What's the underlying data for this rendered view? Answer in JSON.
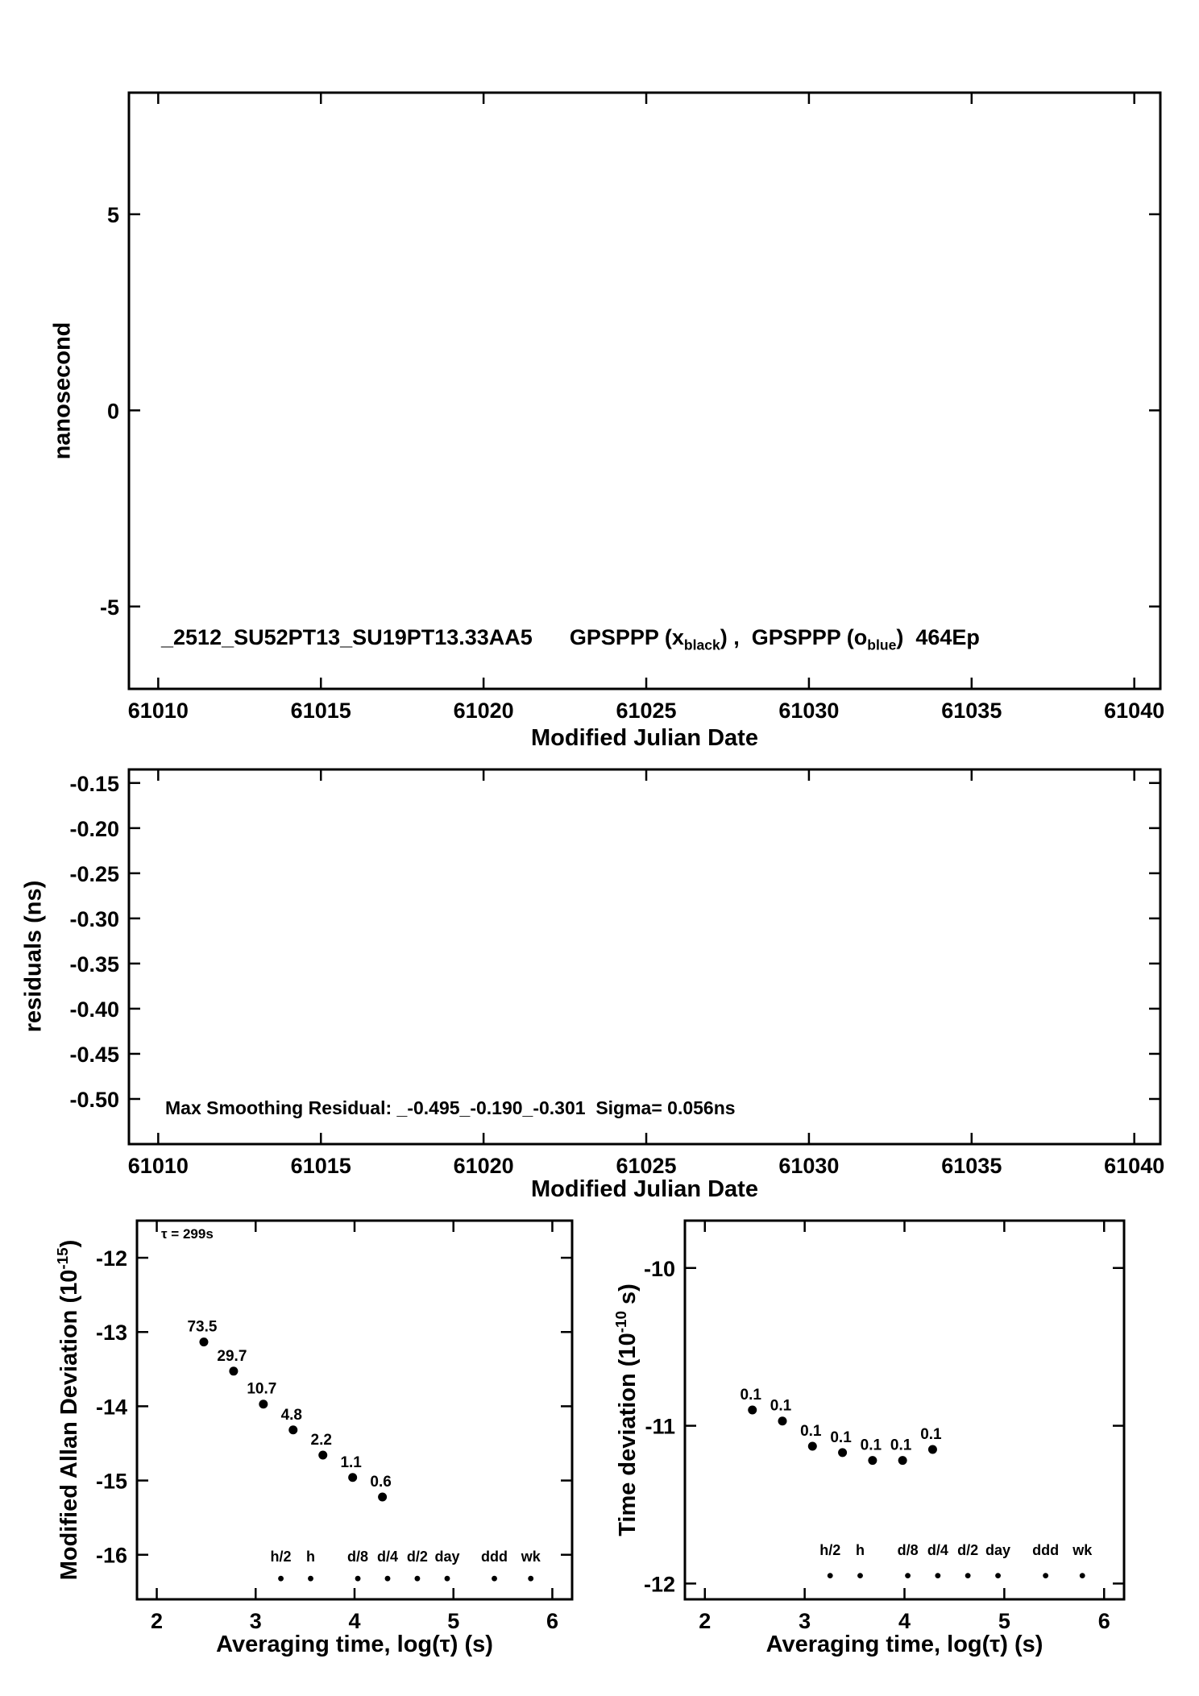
{
  "colors": {
    "background": "#ffffff",
    "axis": "#000000",
    "marker": "#000000",
    "red_label": "#ff0000"
  },
  "chart_data": [
    {
      "type": "scatter",
      "name": "mjd-offset",
      "ylabel": "nanosecond",
      "xlabel": "Modified Julian Date",
      "xlim": [
        61009.1,
        61040.8
      ],
      "ylim": [
        -7.1,
        8.1
      ],
      "xticks": [
        61010,
        61015,
        61020,
        61025,
        61030,
        61035,
        61040
      ],
      "xtick_labels": [
        "61010",
        "61015",
        "61020",
        "61025",
        "61030",
        "61035",
        "61040"
      ],
      "yticks": [
        5,
        0,
        -5
      ],
      "ytick_labels": [
        "5",
        "0",
        "-5"
      ],
      "series": [],
      "annotation": {
        "id": "_2512_SU52PT13_SU19PT13.33AA5",
        "gps_x_prefix": "GPSPPP (x",
        "gps_x_sub": "black",
        "separator": ") ,  GPSPPP (o",
        "gps_o_sub": "blue",
        "suffix": ")  464Ep"
      }
    },
    {
      "type": "scatter",
      "name": "residuals",
      "ylabel": "residuals (ns)",
      "xlabel": "Modified Julian Date",
      "xlim": [
        61009.1,
        61040.8
      ],
      "ylim": [
        -0.55,
        -0.135
      ],
      "xticks": [
        61010,
        61015,
        61020,
        61025,
        61030,
        61035,
        61040
      ],
      "xtick_labels": [
        "61010",
        "61015",
        "61020",
        "61025",
        "61030",
        "61035",
        "61040"
      ],
      "yticks": [
        -0.15,
        -0.2,
        -0.25,
        -0.3,
        -0.35,
        -0.4,
        -0.45,
        -0.5
      ],
      "ytick_labels": [
        "-0.15",
        "-0.20",
        "-0.25",
        "-0.30",
        "-0.35",
        "-0.40",
        "-0.45",
        "-0.50"
      ],
      "series": [],
      "annotation": "Max Smoothing Residual: _-0.495_-0.190_-0.301  Sigma= 0.056ns"
    },
    {
      "type": "scatter",
      "name": "modified-allan-deviation",
      "ylabel_parts": {
        "pre": "Modified Allan Deviation (10",
        "sup": "-15",
        "post": ")"
      },
      "xlabel": "Averaging time, log(τ) (s)",
      "xlim": [
        1.8,
        6.2
      ],
      "ylim": [
        -16.6,
        -11.5
      ],
      "xticks": [
        2,
        3,
        4,
        5,
        6
      ],
      "xtick_labels": [
        "2",
        "3",
        "4",
        "5",
        "6"
      ],
      "yticks": [
        -12,
        -13,
        -14,
        -15,
        -16
      ],
      "ytick_labels": [
        "-12",
        "-13",
        "-14",
        "-15",
        "-16"
      ],
      "tau_annotation": "τ = 299s",
      "points": {
        "x": [
          2.476,
          2.777,
          3.078,
          3.379,
          3.68,
          3.981,
          4.282
        ],
        "y": [
          -13.134,
          -13.527,
          -13.971,
          -14.319,
          -14.658,
          -14.959,
          -15.222
        ],
        "value_labels": [
          "73.5",
          "29.7",
          "10.7",
          "4.8",
          "2.2",
          "1.1",
          "0.6"
        ]
      },
      "marker_row": {
        "x": [
          3.255,
          3.556,
          4.033,
          4.334,
          4.635,
          4.937,
          5.414,
          5.782
        ],
        "y": -16.32,
        "labels": [
          "h/2",
          "h",
          "d/8",
          "d/4",
          "d/2",
          "day",
          "ddd",
          "wk"
        ],
        "label_y": -16.09
      }
    },
    {
      "type": "scatter",
      "name": "time-deviation",
      "ylabel_parts": {
        "pre": "Time deviation (10",
        "sup": "-10",
        "post": " s)"
      },
      "xlabel": "Averaging time, log(τ) (s)",
      "xlim": [
        1.8,
        6.2
      ],
      "ylim": [
        -12.1,
        -9.7
      ],
      "xticks": [
        2,
        3,
        4,
        5,
        6
      ],
      "xtick_labels": [
        "2",
        "3",
        "4",
        "5",
        "6"
      ],
      "yticks": [
        -10,
        -11,
        -12
      ],
      "ytick_labels": [
        "-10",
        "-11",
        "-12"
      ],
      "points": {
        "x": [
          2.476,
          2.777,
          3.078,
          3.379,
          3.68,
          3.981,
          4.282
        ],
        "y": [
          -10.9,
          -10.97,
          -11.13,
          -11.17,
          -11.22,
          -11.22,
          -11.15
        ],
        "value_labels": [
          "0.1",
          "0.1",
          "0.1",
          "0.1",
          "0.1",
          "0.1",
          "0.1"
        ]
      },
      "marker_row": {
        "x": [
          3.255,
          3.556,
          4.033,
          4.334,
          4.635,
          4.937,
          5.414,
          5.782
        ],
        "y": -11.95,
        "labels": [
          "h/2",
          "h",
          "d/8",
          "d/4",
          "d/2",
          "day",
          "ddd",
          "wk"
        ],
        "label_y": -11.82
      }
    }
  ]
}
